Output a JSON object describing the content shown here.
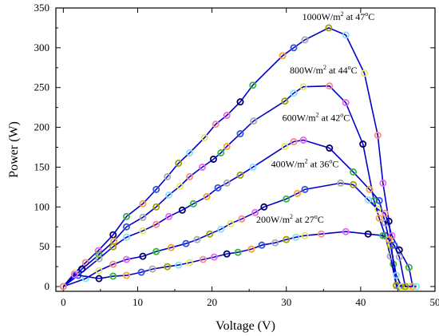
{
  "chart_data": {
    "type": "line",
    "xlabel": "Voltage (V)",
    "ylabel": "Power (W)",
    "xlim": [
      -1,
      50
    ],
    "ylim": [
      -6,
      350
    ],
    "xticks": [
      0,
      10,
      20,
      30,
      40,
      50
    ],
    "yticks": [
      0,
      50,
      100,
      150,
      200,
      250,
      300,
      350
    ],
    "grid": false,
    "line_color": "#0000cc",
    "marker_colors": [
      "#88e0ff",
      "#e8e860",
      "#ff8888",
      "#ee66ee",
      "#000060",
      "#33bb33",
      "#ffa033",
      "#3355dd",
      "#aaaaaa",
      "#a0a000"
    ],
    "series": [
      {
        "name": "1000W/m2 at 47°C",
        "label_main": "1000W/m",
        "label_sup": "2",
        "label_rest": " at 47",
        "label_deg": "o",
        "label_end": "C",
        "annotation_at": [
          37,
          335
        ],
        "points": [
          [
            0,
            0
          ],
          [
            1.5,
            17
          ],
          [
            3,
            30
          ],
          [
            4.7,
            45
          ],
          [
            6.7,
            65
          ],
          [
            8.5,
            88
          ],
          [
            10.7,
            104
          ],
          [
            12.5,
            122
          ],
          [
            14,
            138
          ],
          [
            15.5,
            155
          ],
          [
            17,
            168
          ],
          [
            19,
            187
          ],
          [
            20.5,
            204
          ],
          [
            22,
            215
          ],
          [
            23.8,
            232
          ],
          [
            25.5,
            253
          ],
          [
            29.5,
            290
          ],
          [
            31,
            300
          ],
          [
            32.5,
            310
          ],
          [
            35.7,
            325
          ],
          [
            38,
            316
          ],
          [
            40.5,
            268
          ],
          [
            42.3,
            190
          ],
          [
            43,
            130
          ],
          [
            43.8,
            82
          ],
          [
            44.4,
            28
          ],
          [
            44.8,
            2
          ],
          [
            45.2,
            0
          ]
        ]
      },
      {
        "name": "800W/m2 at 44°C",
        "label_main": "800W/m",
        "label_sup": "2",
        "label_rest": " at 44",
        "label_deg": "o",
        "label_end": "C",
        "annotation_at": [
          35,
          268
        ],
        "points": [
          [
            0,
            0
          ],
          [
            2.5,
            22
          ],
          [
            4.8,
            40
          ],
          [
            6.8,
            57
          ],
          [
            8.5,
            75
          ],
          [
            10.7,
            87
          ],
          [
            12.5,
            100
          ],
          [
            14.2,
            115
          ],
          [
            15.7,
            126
          ],
          [
            17,
            138
          ],
          [
            18.7,
            150
          ],
          [
            20.2,
            160
          ],
          [
            21.2,
            168
          ],
          [
            22,
            176
          ],
          [
            23.8,
            192
          ],
          [
            25.6,
            208
          ],
          [
            29.8,
            233
          ],
          [
            31,
            243
          ],
          [
            32.3,
            251
          ],
          [
            35.8,
            252
          ],
          [
            38,
            231
          ],
          [
            40.3,
            179
          ],
          [
            41.8,
            108
          ],
          [
            42.5,
            86
          ],
          [
            43.3,
            64
          ],
          [
            44,
            38
          ],
          [
            44.8,
            1
          ],
          [
            45.5,
            0
          ],
          [
            46.5,
            0
          ]
        ]
      },
      {
        "name": "600W/m2 at 42°C",
        "label_main": "600W/m",
        "label_sup": "2",
        "label_rest": " at 42",
        "label_deg": "o",
        "label_end": "C",
        "annotation_at": [
          34,
          208
        ],
        "points": [
          [
            0,
            0
          ],
          [
            2,
            14
          ],
          [
            4.8,
            35
          ],
          [
            6.7,
            50
          ],
          [
            8.5,
            62
          ],
          [
            10.7,
            70
          ],
          [
            12.5,
            78
          ],
          [
            14.2,
            88
          ],
          [
            16,
            96
          ],
          [
            17.5,
            104
          ],
          [
            19.3,
            113
          ],
          [
            20.8,
            124
          ],
          [
            22,
            130
          ],
          [
            23.8,
            140
          ],
          [
            25.5,
            150
          ],
          [
            29.8,
            176
          ],
          [
            31,
            182
          ],
          [
            32.3,
            184
          ],
          [
            35.8,
            174
          ],
          [
            39,
            144
          ],
          [
            41.2,
            122
          ],
          [
            42.5,
            108
          ],
          [
            43.3,
            80
          ],
          [
            44,
            52
          ],
          [
            44.8,
            14
          ],
          [
            45.5,
            0
          ],
          [
            47,
            0
          ]
        ]
      },
      {
        "name": "400W/m2 at 36°C",
        "label_main": "400W/m",
        "label_sup": "2",
        "label_rest": " at 36",
        "label_deg": "o",
        "label_end": "C",
        "annotation_at": [
          32.5,
          150
        ],
        "points": [
          [
            0,
            0
          ],
          [
            3,
            10
          ],
          [
            4.8,
            20
          ],
          [
            6.7,
            28
          ],
          [
            8.5,
            34
          ],
          [
            10.7,
            38
          ],
          [
            12.5,
            44
          ],
          [
            14.5,
            49
          ],
          [
            16.5,
            54
          ],
          [
            18,
            59
          ],
          [
            19.7,
            66
          ],
          [
            21.2,
            72
          ],
          [
            22.5,
            79
          ],
          [
            24,
            85
          ],
          [
            25.8,
            93
          ],
          [
            27,
            100
          ],
          [
            30,
            110
          ],
          [
            31.5,
            117
          ],
          [
            32.5,
            122
          ],
          [
            37.3,
            130
          ],
          [
            39,
            128
          ],
          [
            41,
            109
          ],
          [
            42.3,
            97
          ],
          [
            43.3,
            92
          ],
          [
            44.2,
            64
          ],
          [
            45.2,
            46
          ],
          [
            46.5,
            24
          ],
          [
            47,
            0
          ]
        ]
      },
      {
        "name": "200W/m2 at 27°C",
        "label_main": "200W/m",
        "label_sup": "2",
        "label_rest": " at 27",
        "label_deg": "o",
        "label_end": "C",
        "annotation_at": [
          30.5,
          80
        ],
        "points": [
          [
            0,
            0
          ],
          [
            1.5,
            15
          ],
          [
            4.8,
            10
          ],
          [
            6.7,
            13
          ],
          [
            8.5,
            14
          ],
          [
            10.5,
            18
          ],
          [
            12,
            22
          ],
          [
            14,
            25
          ],
          [
            15.5,
            27
          ],
          [
            17,
            30
          ],
          [
            18.8,
            34
          ],
          [
            20.3,
            37
          ],
          [
            22,
            41
          ],
          [
            23.5,
            43
          ],
          [
            25.3,
            47
          ],
          [
            26.7,
            52
          ],
          [
            28.5,
            55
          ],
          [
            30,
            59
          ],
          [
            31.3,
            62
          ],
          [
            32.5,
            64
          ],
          [
            34.7,
            66
          ],
          [
            38,
            69
          ],
          [
            41,
            66
          ],
          [
            43,
            64
          ],
          [
            43.8,
            59
          ],
          [
            44.5,
            52
          ],
          [
            45.2,
            37
          ],
          [
            46,
            0
          ],
          [
            47.5,
            0
          ]
        ]
      }
    ]
  }
}
